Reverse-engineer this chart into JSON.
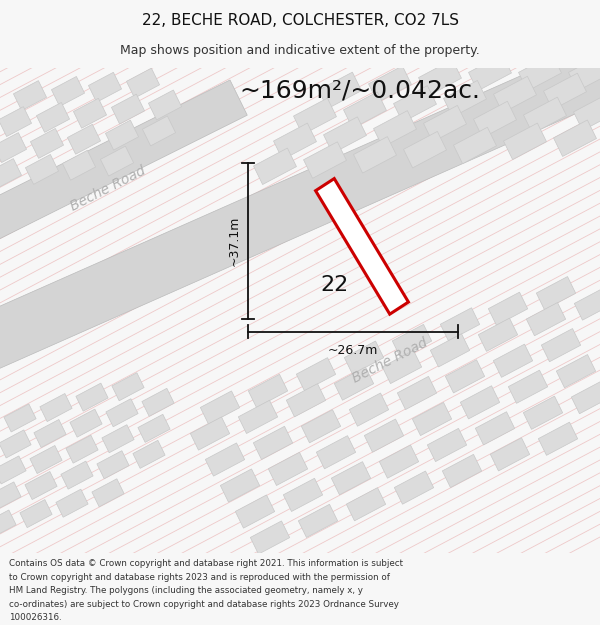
{
  "title_line1": "22, BECHE ROAD, COLCHESTER, CO2 7LS",
  "title_line2": "Map shows position and indicative extent of the property.",
  "area_text": "~169m²/~0.042ac.",
  "label_number": "22",
  "dim_height": "~37.1m",
  "dim_width": "~26.7m",
  "road_label_upper": "Beche Road",
  "road_label_lower": "Beche Road",
  "footer_text": "Contains OS data © Crown copyright and database right 2021. This information is subject to Crown copyright and database rights 2023 and is reproduced with the permission of HM Land Registry. The polygons (including the associated geometry, namely x, y co-ordinates) are subject to Crown copyright and database rights 2023 Ordnance Survey 100026316.",
  "bg_color": "#f7f7f7",
  "map_bg": "#f2f0ef",
  "road_fill": "#d4d4d4",
  "building_fill": "#dcdcdc",
  "building_edge": "#c8c8c8",
  "highlight_fill": "#ffffff",
  "highlight_stroke": "#cc0000",
  "dim_line_color": "#111111",
  "hatch_color": "#e8aaaa",
  "road_text_color": "#b0b0b0",
  "footer_color": "#333333",
  "title_fontsize": 11,
  "subtitle_fontsize": 9,
  "area_fontsize": 18,
  "dim_fontsize": 9,
  "label_fontsize": 16,
  "road_fontsize": 10,
  "footer_fontsize": 6.3
}
